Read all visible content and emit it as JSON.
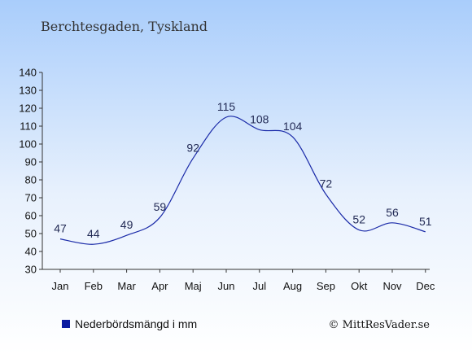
{
  "chart_data": {
    "type": "line",
    "title": "Berchtesgaden, Tyskland",
    "categories": [
      "Jan",
      "Feb",
      "Mar",
      "Apr",
      "Maj",
      "Jun",
      "Jul",
      "Aug",
      "Sep",
      "Okt",
      "Nov",
      "Dec"
    ],
    "series": [
      {
        "name": "Nederbördsmängd i mm",
        "values": [
          47,
          44,
          49,
          59,
          92,
          115,
          108,
          104,
          72,
          52,
          56,
          51
        ]
      }
    ],
    "ylim": [
      30,
      140
    ],
    "yticks": [
      30,
      40,
      50,
      60,
      70,
      80,
      90,
      100,
      110,
      120,
      130,
      140
    ],
    "grid": false,
    "legend_position": "bottom-left",
    "colors": {
      "line": "#1a2aa8",
      "legend_swatch": "#0a1aa0",
      "axis": "#333333"
    }
  },
  "credit": "© MittResVader.se"
}
